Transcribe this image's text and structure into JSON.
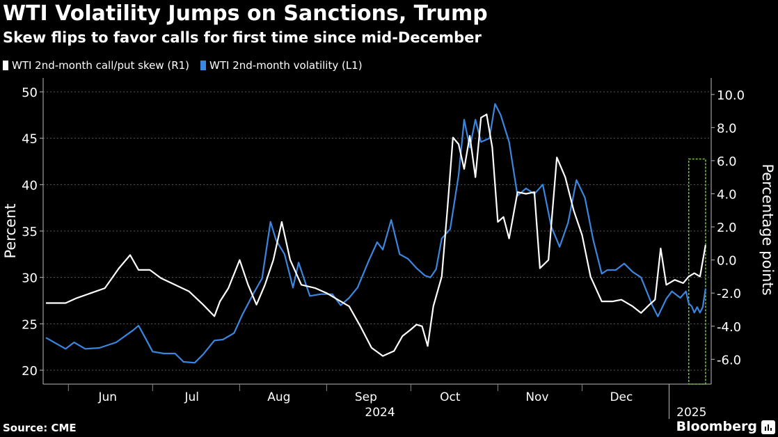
{
  "header": {
    "title": "WTI Volatility Jumps on Sanctions, Trump",
    "subtitle": "Skew flips to favor calls for first time since mid-December"
  },
  "legend": [
    {
      "label": "WTI 2nd-month call/put skew (R1)",
      "color": "#ffffff"
    },
    {
      "label": "WTI 2nd-month volatility (L1)",
      "color": "#3b87e0"
    }
  ],
  "footer": {
    "source": "Source: CME",
    "brand": "Bloomberg"
  },
  "chart_data": {
    "type": "line",
    "x_unit": "date",
    "x_range": [
      "2024-05-23",
      "2025-01-16"
    ],
    "x_ticks": [
      {
        "label": "Jun",
        "date": "2024-06-15"
      },
      {
        "label": "Jul",
        "date": "2024-07-15"
      },
      {
        "label": "Aug",
        "date": "2024-08-15"
      },
      {
        "label": "Sep",
        "date": "2024-09-15"
      },
      {
        "label": "Oct",
        "date": "2024-10-15"
      },
      {
        "label": "Nov",
        "date": "2024-11-15"
      },
      {
        "label": "Dec",
        "date": "2024-12-15"
      }
    ],
    "year_labels": [
      {
        "label": "2024",
        "date": "2024-09-20"
      },
      {
        "label": "2025",
        "date": "2025-01-09"
      }
    ],
    "year_divider": "2025-01-01",
    "left_axis": {
      "label": "Percent",
      "min": 18.5,
      "max": 51.5,
      "ticks": [
        20,
        25,
        30,
        35,
        40,
        45,
        50
      ]
    },
    "right_axis": {
      "label": "Percentage points",
      "min": -7.5,
      "max": 11.0,
      "ticks": [
        "10.0",
        "8.0",
        "6.0",
        "4.0",
        "2.0",
        "0.0",
        "-2.0",
        "-4.0",
        "-6.0"
      ]
    },
    "highlight": {
      "from": "2025-01-08",
      "to": "2025-01-14",
      "y_from": -7.5,
      "y_to": 6.1,
      "axis": "right",
      "color": "#7ac943"
    },
    "series": [
      {
        "name": "WTI 2nd-month volatility (L1)",
        "axis": "left",
        "color": "#3b87e0",
        "points": [
          [
            "2024-05-24",
            23.5
          ],
          [
            "2024-05-31",
            22.3
          ],
          [
            "2024-06-03",
            23.0
          ],
          [
            "2024-06-07",
            22.3
          ],
          [
            "2024-06-12",
            22.4
          ],
          [
            "2024-06-18",
            23.0
          ],
          [
            "2024-06-24",
            24.3
          ],
          [
            "2024-06-26",
            24.8
          ],
          [
            "2024-06-28",
            23.7
          ],
          [
            "2024-07-01",
            22.0
          ],
          [
            "2024-07-05",
            21.8
          ],
          [
            "2024-07-09",
            21.8
          ],
          [
            "2024-07-12",
            20.9
          ],
          [
            "2024-07-16",
            20.8
          ],
          [
            "2024-07-19",
            21.7
          ],
          [
            "2024-07-23",
            23.2
          ],
          [
            "2024-07-26",
            23.3
          ],
          [
            "2024-07-30",
            24.0
          ],
          [
            "2024-08-02",
            26.0
          ],
          [
            "2024-08-06",
            28.3
          ],
          [
            "2024-08-09",
            29.9
          ],
          [
            "2024-08-12",
            36.0
          ],
          [
            "2024-08-14",
            34.0
          ],
          [
            "2024-08-17",
            32.5
          ],
          [
            "2024-08-20",
            28.9
          ],
          [
            "2024-08-22",
            31.6
          ],
          [
            "2024-08-26",
            28.0
          ],
          [
            "2024-08-30",
            28.2
          ],
          [
            "2024-09-03",
            28.2
          ],
          [
            "2024-09-06",
            27.0
          ],
          [
            "2024-09-09",
            27.8
          ],
          [
            "2024-09-12",
            28.9
          ],
          [
            "2024-09-16",
            31.8
          ],
          [
            "2024-09-19",
            33.8
          ],
          [
            "2024-09-21",
            33.0
          ],
          [
            "2024-09-24",
            36.2
          ],
          [
            "2024-09-27",
            32.5
          ],
          [
            "2024-09-30",
            32.0
          ],
          [
            "2024-10-03",
            31.0
          ],
          [
            "2024-10-06",
            30.2
          ],
          [
            "2024-10-08",
            30.0
          ],
          [
            "2024-10-10",
            30.9
          ],
          [
            "2024-10-12",
            34.2
          ],
          [
            "2024-10-15",
            35.2
          ],
          [
            "2024-10-18",
            41.0
          ],
          [
            "2024-10-20",
            47.0
          ],
          [
            "2024-10-22",
            44.0
          ],
          [
            "2024-10-24",
            47.0
          ],
          [
            "2024-10-26",
            44.6
          ],
          [
            "2024-10-29",
            45.0
          ],
          [
            "2024-10-31",
            48.7
          ],
          [
            "2024-11-02",
            47.5
          ],
          [
            "2024-11-05",
            44.6
          ],
          [
            "2024-11-08",
            38.8
          ],
          [
            "2024-11-11",
            39.6
          ],
          [
            "2024-11-14",
            39.0
          ],
          [
            "2024-11-17",
            40.0
          ],
          [
            "2024-11-20",
            35.5
          ],
          [
            "2024-11-23",
            33.3
          ],
          [
            "2024-11-26",
            35.9
          ],
          [
            "2024-11-29",
            40.5
          ],
          [
            "2024-12-02",
            38.6
          ],
          [
            "2024-12-05",
            34.0
          ],
          [
            "2024-12-08",
            30.4
          ],
          [
            "2024-12-10",
            30.8
          ],
          [
            "2024-12-13",
            30.8
          ],
          [
            "2024-12-16",
            31.5
          ],
          [
            "2024-12-19",
            30.6
          ],
          [
            "2024-12-22",
            30.0
          ],
          [
            "2024-12-26",
            27.0
          ],
          [
            "2024-12-28",
            25.8
          ],
          [
            "2024-12-31",
            27.7
          ],
          [
            "2025-01-02",
            28.5
          ],
          [
            "2025-01-05",
            27.8
          ],
          [
            "2025-01-07",
            28.5
          ],
          [
            "2025-01-08",
            27.2
          ],
          [
            "2025-01-09",
            26.9
          ],
          [
            "2025-01-10",
            26.2
          ],
          [
            "2025-01-11",
            26.8
          ],
          [
            "2025-01-12",
            26.2
          ],
          [
            "2025-01-13",
            26.8
          ],
          [
            "2025-01-14",
            28.8
          ]
        ]
      },
      {
        "name": "WTI 2nd-month call/put skew (R1)",
        "axis": "right",
        "color": "#ffffff",
        "points": [
          [
            "2024-05-24",
            -2.6
          ],
          [
            "2024-05-31",
            -2.6
          ],
          [
            "2024-06-04",
            -2.3
          ],
          [
            "2024-06-09",
            -2.0
          ],
          [
            "2024-06-14",
            -1.7
          ],
          [
            "2024-06-19",
            -0.5
          ],
          [
            "2024-06-23",
            0.3
          ],
          [
            "2024-06-26",
            -0.6
          ],
          [
            "2024-06-30",
            -0.6
          ],
          [
            "2024-07-04",
            -1.1
          ],
          [
            "2024-07-09",
            -1.5
          ],
          [
            "2024-07-14",
            -1.9
          ],
          [
            "2024-07-19",
            -2.7
          ],
          [
            "2024-07-23",
            -3.4
          ],
          [
            "2024-07-25",
            -2.5
          ],
          [
            "2024-07-28",
            -1.7
          ],
          [
            "2024-08-01",
            0.0
          ],
          [
            "2024-08-04",
            -1.5
          ],
          [
            "2024-08-07",
            -2.7
          ],
          [
            "2024-08-10",
            -1.5
          ],
          [
            "2024-08-13",
            0.0
          ],
          [
            "2024-08-16",
            2.3
          ],
          [
            "2024-08-19",
            0.0
          ],
          [
            "2024-08-23",
            -1.5
          ],
          [
            "2024-08-28",
            -1.7
          ],
          [
            "2024-09-01",
            -2.0
          ],
          [
            "2024-09-05",
            -2.4
          ],
          [
            "2024-09-09",
            -2.8
          ],
          [
            "2024-09-13",
            -4.0
          ],
          [
            "2024-09-17",
            -5.3
          ],
          [
            "2024-09-21",
            -5.8
          ],
          [
            "2024-09-25",
            -5.5
          ],
          [
            "2024-09-28",
            -4.6
          ],
          [
            "2024-10-01",
            -4.2
          ],
          [
            "2024-10-03",
            -3.9
          ],
          [
            "2024-10-05",
            -4.0
          ],
          [
            "2024-10-07",
            -5.2
          ],
          [
            "2024-10-09",
            -2.8
          ],
          [
            "2024-10-12",
            -1.0
          ],
          [
            "2024-10-14",
            3.0
          ],
          [
            "2024-10-16",
            7.4
          ],
          [
            "2024-10-18",
            7.0
          ],
          [
            "2024-10-20",
            5.5
          ],
          [
            "2024-10-22",
            7.5
          ],
          [
            "2024-10-24",
            5.0
          ],
          [
            "2024-10-26",
            8.6
          ],
          [
            "2024-10-28",
            8.8
          ],
          [
            "2024-10-30",
            6.8
          ],
          [
            "2024-11-01",
            2.3
          ],
          [
            "2024-11-03",
            2.6
          ],
          [
            "2024-11-05",
            1.3
          ],
          [
            "2024-11-08",
            4.1
          ],
          [
            "2024-11-11",
            4.0
          ],
          [
            "2024-11-14",
            4.1
          ],
          [
            "2024-11-16",
            -0.5
          ],
          [
            "2024-11-19",
            0.0
          ],
          [
            "2024-11-22",
            6.2
          ],
          [
            "2024-11-25",
            5.0
          ],
          [
            "2024-11-28",
            3.0
          ],
          [
            "2024-12-01",
            1.5
          ],
          [
            "2024-12-04",
            -1.0
          ],
          [
            "2024-12-08",
            -2.5
          ],
          [
            "2024-12-12",
            -2.5
          ],
          [
            "2024-12-15",
            -2.4
          ],
          [
            "2024-12-19",
            -2.8
          ],
          [
            "2024-12-22",
            -3.2
          ],
          [
            "2024-12-25",
            -2.7
          ],
          [
            "2024-12-27",
            -2.4
          ],
          [
            "2024-12-29",
            0.7
          ],
          [
            "2024-12-31",
            -1.5
          ],
          [
            "2025-01-03",
            -1.2
          ],
          [
            "2025-01-06",
            -1.4
          ],
          [
            "2025-01-08",
            -1.0
          ],
          [
            "2025-01-10",
            -0.8
          ],
          [
            "2025-01-12",
            -1.0
          ],
          [
            "2025-01-14",
            0.9
          ]
        ]
      }
    ]
  }
}
